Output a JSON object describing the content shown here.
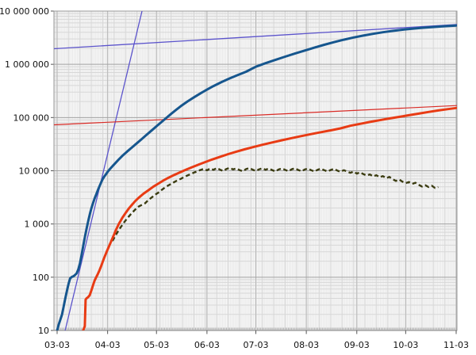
{
  "page": {
    "background": "#ffffff"
  },
  "chart_data": {
    "type": "line",
    "title": "",
    "legend": "none",
    "x_axis": {
      "type": "date",
      "tick_labels": [
        "03-03",
        "04-03",
        "05-03",
        "06-03",
        "07-03",
        "08-03",
        "09-03",
        "10-03",
        "11-03"
      ],
      "tick_day_offsets": [
        0,
        31,
        61,
        92,
        122,
        153,
        184,
        214,
        245
      ],
      "range_days": [
        0,
        245
      ],
      "minor_tick": "daily"
    },
    "y_axis": {
      "scale": "log10",
      "range": [
        10,
        10000000
      ],
      "tick_labels": [
        "10",
        "100",
        "1 000",
        "10 000",
        "100 000",
        "1 000 000",
        "10 000 000"
      ],
      "tick_values": [
        10,
        100,
        1000,
        10000,
        100000,
        1000000,
        10000000
      ],
      "minor_gridlines": true
    },
    "grid": {
      "plot_background": "#e9e9e9",
      "day_line": "#f8f8f8",
      "week_line": "#e0e0e0",
      "minor_h_line": "#d7d7d7",
      "month_line": "#b9b9b9",
      "decade_line": "#a3a3a3",
      "frame": "#999999",
      "axis": "#777777",
      "tick": "#555555",
      "label_color": "#111111"
    },
    "series": [
      {
        "id": "series-blue-thick",
        "label": "thick dark-blue cumulative curve",
        "color": "#16568e",
        "width": 3,
        "line": "solid",
        "points": [
          [
            0,
            10
          ],
          [
            1,
            13
          ],
          [
            2,
            16
          ],
          [
            3,
            20
          ],
          [
            4,
            28
          ],
          [
            5,
            40
          ],
          [
            6,
            55
          ],
          [
            7,
            75
          ],
          [
            8,
            95
          ],
          [
            9,
            101
          ],
          [
            10,
            104
          ],
          [
            11,
            110
          ],
          [
            12,
            118
          ],
          [
            13,
            140
          ],
          [
            14,
            180
          ],
          [
            15,
            260
          ],
          [
            16,
            380
          ],
          [
            17,
            560
          ],
          [
            18,
            800
          ],
          [
            19,
            1100
          ],
          [
            20,
            1500
          ],
          [
            21,
            1950
          ],
          [
            22,
            2450
          ],
          [
            23,
            3000
          ],
          [
            24,
            3600
          ],
          [
            25,
            4300
          ],
          [
            26,
            5100
          ],
          [
            27,
            6000
          ],
          [
            28,
            7000
          ],
          [
            29,
            7800
          ],
          [
            30,
            8600
          ],
          [
            31,
            9500
          ],
          [
            32,
            10400
          ],
          [
            34,
            12200
          ],
          [
            36,
            14200
          ],
          [
            38,
            16500
          ],
          [
            40,
            19000
          ],
          [
            43,
            23000
          ],
          [
            46,
            27500
          ],
          [
            49,
            33000
          ],
          [
            52,
            39500
          ],
          [
            55,
            47500
          ],
          [
            58,
            57000
          ],
          [
            61,
            68500
          ],
          [
            64,
            82000
          ],
          [
            67,
            98000
          ],
          [
            70,
            117000
          ],
          [
            73,
            139000
          ],
          [
            76,
            164000
          ],
          [
            80,
            200000
          ],
          [
            84,
            240000
          ],
          [
            88,
            285000
          ],
          [
            92,
            335000
          ],
          [
            96,
            390000
          ],
          [
            101,
            465000
          ],
          [
            106,
            545000
          ],
          [
            111,
            630000
          ],
          [
            116,
            725000
          ],
          [
            122,
            900000
          ],
          [
            128,
            1050000
          ],
          [
            134,
            1210000
          ],
          [
            140,
            1390000
          ],
          [
            146,
            1590000
          ],
          [
            152,
            1810000
          ],
          [
            158,
            2060000
          ],
          [
            164,
            2330000
          ],
          [
            170,
            2610000
          ],
          [
            176,
            2900000
          ],
          [
            182,
            3190000
          ],
          [
            188,
            3470000
          ],
          [
            194,
            3740000
          ],
          [
            200,
            4000000
          ],
          [
            206,
            4240000
          ],
          [
            212,
            4460000
          ],
          [
            218,
            4660000
          ],
          [
            224,
            4840000
          ],
          [
            230,
            5000000
          ],
          [
            236,
            5140000
          ],
          [
            241,
            5250000
          ],
          [
            245,
            5350000
          ]
        ]
      },
      {
        "id": "series-red-thick",
        "label": "thick red cumulative curve",
        "color": "#e83b14",
        "width": 3,
        "line": "solid",
        "points": [
          [
            16,
            10
          ],
          [
            17,
            12
          ],
          [
            17.5,
            38
          ],
          [
            18,
            40
          ],
          [
            19,
            42
          ],
          [
            20,
            46
          ],
          [
            21,
            56
          ],
          [
            22,
            70
          ],
          [
            23,
            86
          ],
          [
            24,
            100
          ],
          [
            25,
            115
          ],
          [
            26,
            135
          ],
          [
            27,
            160
          ],
          [
            28,
            195
          ],
          [
            29,
            235
          ],
          [
            30,
            280
          ],
          [
            31,
            330
          ],
          [
            32,
            390
          ],
          [
            33,
            460
          ],
          [
            34,
            540
          ],
          [
            35,
            640
          ],
          [
            36,
            760
          ],
          [
            37,
            880
          ],
          [
            38,
            1020
          ],
          [
            39,
            1150
          ],
          [
            40,
            1300
          ],
          [
            42,
            1600
          ],
          [
            44,
            1950
          ],
          [
            46,
            2300
          ],
          [
            48,
            2700
          ],
          [
            50,
            3100
          ],
          [
            53,
            3700
          ],
          [
            56,
            4300
          ],
          [
            59,
            5000
          ],
          [
            62,
            5700
          ],
          [
            65,
            6500
          ],
          [
            68,
            7300
          ],
          [
            71,
            8100
          ],
          [
            75,
            9200
          ],
          [
            79,
            10400
          ],
          [
            83,
            11700
          ],
          [
            87,
            13100
          ],
          [
            91,
            14600
          ],
          [
            95,
            16200
          ],
          [
            100,
            18300
          ],
          [
            105,
            20500
          ],
          [
            110,
            22800
          ],
          [
            115,
            25200
          ],
          [
            120,
            27700
          ],
          [
            126,
            30800
          ],
          [
            132,
            34000
          ],
          [
            138,
            37400
          ],
          [
            144,
            41000
          ],
          [
            150,
            44800
          ],
          [
            156,
            48800
          ],
          [
            162,
            53000
          ],
          [
            168,
            57500
          ],
          [
            174,
            62500
          ],
          [
            180,
            70000
          ],
          [
            186,
            76000
          ],
          [
            192,
            82500
          ],
          [
            198,
            89000
          ],
          [
            204,
            96000
          ],
          [
            210,
            103000
          ],
          [
            216,
            110500
          ],
          [
            222,
            118500
          ],
          [
            228,
            127000
          ],
          [
            234,
            136000
          ],
          [
            240,
            144000
          ],
          [
            245,
            151000
          ]
        ]
      },
      {
        "id": "series-dark-dashed",
        "label": "dashed dark-olive daily curve",
        "color": "#3b3c11",
        "width": 2.4,
        "line": "dashed",
        "points": [
          [
            34,
            480
          ],
          [
            36,
            620
          ],
          [
            38,
            780
          ],
          [
            40,
            960
          ],
          [
            42,
            1160
          ],
          [
            44,
            1380
          ],
          [
            46,
            1620
          ],
          [
            48,
            1870
          ],
          [
            50,
            2120
          ],
          [
            52,
            2280
          ],
          [
            54,
            2450
          ],
          [
            56,
            2820
          ],
          [
            58,
            3140
          ],
          [
            60,
            3520
          ],
          [
            62,
            3850
          ],
          [
            64,
            4320
          ],
          [
            66,
            4800
          ],
          [
            68,
            5250
          ],
          [
            70,
            5650
          ],
          [
            72,
            6150
          ],
          [
            74,
            6650
          ],
          [
            76,
            7050
          ],
          [
            78,
            7650
          ],
          [
            80,
            8150
          ],
          [
            82,
            8650
          ],
          [
            84,
            9250
          ],
          [
            86,
            9750
          ],
          [
            88,
            10350
          ],
          [
            90,
            10850
          ],
          [
            92,
            10200
          ],
          [
            94,
            11050
          ],
          [
            96,
            10400
          ],
          [
            98,
            11250
          ],
          [
            100,
            10500
          ],
          [
            102,
            9900
          ],
          [
            104,
            10800
          ],
          [
            106,
            11350
          ],
          [
            108,
            10600
          ],
          [
            110,
            11050
          ],
          [
            112,
            10300
          ],
          [
            114,
            9800
          ],
          [
            116,
            10750
          ],
          [
            118,
            11250
          ],
          [
            120,
            10500
          ],
          [
            122,
            9900
          ],
          [
            124,
            10650
          ],
          [
            126,
            11150
          ],
          [
            128,
            10400
          ],
          [
            130,
            11000
          ],
          [
            132,
            10300
          ],
          [
            134,
            9700
          ],
          [
            136,
            10550
          ],
          [
            138,
            11050
          ],
          [
            140,
            10400
          ],
          [
            142,
            9800
          ],
          [
            144,
            10650
          ],
          [
            146,
            11100
          ],
          [
            148,
            10350
          ],
          [
            150,
            9800
          ],
          [
            152,
            10550
          ],
          [
            154,
            11000
          ],
          [
            156,
            10250
          ],
          [
            158,
            9650
          ],
          [
            160,
            10450
          ],
          [
            162,
            10950
          ],
          [
            164,
            10250
          ],
          [
            166,
            9700
          ],
          [
            168,
            10350
          ],
          [
            170,
            10850
          ],
          [
            172,
            10100
          ],
          [
            174,
            9550
          ],
          [
            176,
            10250
          ],
          [
            178,
            9700
          ],
          [
            180,
            9150
          ],
          [
            182,
            9650
          ],
          [
            184,
            8850
          ],
          [
            186,
            9350
          ],
          [
            188,
            8650
          ],
          [
            190,
            8150
          ],
          [
            192,
            8550
          ],
          [
            194,
            7850
          ],
          [
            196,
            8250
          ],
          [
            198,
            7550
          ],
          [
            200,
            7950
          ],
          [
            202,
            7250
          ],
          [
            204,
            7650
          ],
          [
            206,
            6950
          ],
          [
            208,
            6450
          ],
          [
            210,
            6850
          ],
          [
            212,
            6250
          ],
          [
            214,
            5850
          ],
          [
            216,
            6150
          ],
          [
            218,
            5650
          ],
          [
            220,
            5950
          ],
          [
            222,
            5450
          ],
          [
            224,
            5050
          ],
          [
            226,
            5350
          ],
          [
            228,
            4950
          ],
          [
            230,
            5250
          ],
          [
            232,
            4750
          ],
          [
            234,
            4950
          ]
        ]
      },
      {
        "id": "trend-blue-steep",
        "label": "thin steep blue exponential reference line",
        "color": "#5c54cc",
        "width": 1.3,
        "line": "solid",
        "points": [
          [
            4.9,
            10
          ],
          [
            52.1,
            10000000
          ]
        ]
      },
      {
        "id": "trend-blue-flat",
        "label": "thin shallow blue reference line",
        "color": "#5c54cc",
        "width": 1.3,
        "line": "solid",
        "points": [
          [
            -1.9,
            1960000
          ],
          [
            245.5,
            5600000
          ]
        ]
      },
      {
        "id": "trend-red-flat",
        "label": "thin shallow red reference line",
        "color": "#d92b26",
        "width": 1.2,
        "line": "solid",
        "points": [
          [
            -1.9,
            73000
          ],
          [
            245.5,
            168000
          ]
        ]
      }
    ]
  }
}
